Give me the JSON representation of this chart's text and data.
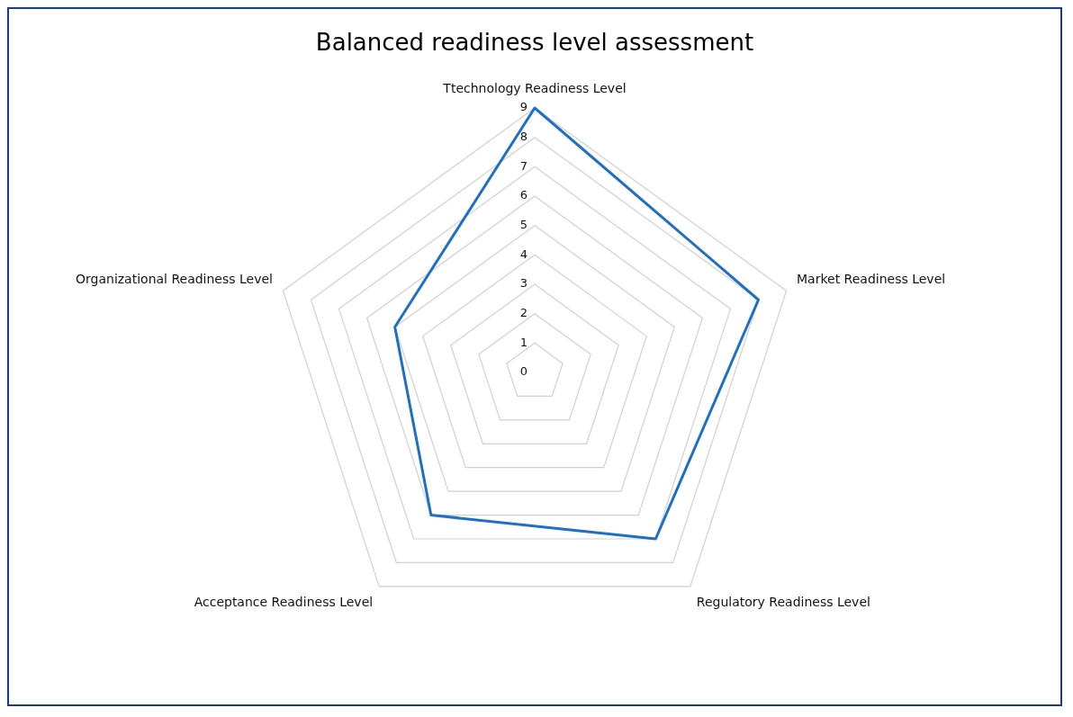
{
  "chart_data": {
    "type": "radar",
    "title": "Balanced readiness level assessment",
    "categories": [
      "Ttechnology Readiness Level",
      "Market Readiness Level",
      "Regulatory Readiness Level",
      "Acceptance Readiness Level",
      "Organizational Readiness Level"
    ],
    "series": [
      {
        "color": "#1f6fc5",
        "values": [
          9,
          8,
          7,
          6,
          5
        ]
      }
    ],
    "ylim": [
      0,
      9
    ],
    "yticks": [
      0,
      1,
      2,
      3,
      4,
      5,
      6,
      7,
      8,
      9
    ],
    "grid": true,
    "marker": "none",
    "legend": false
  }
}
